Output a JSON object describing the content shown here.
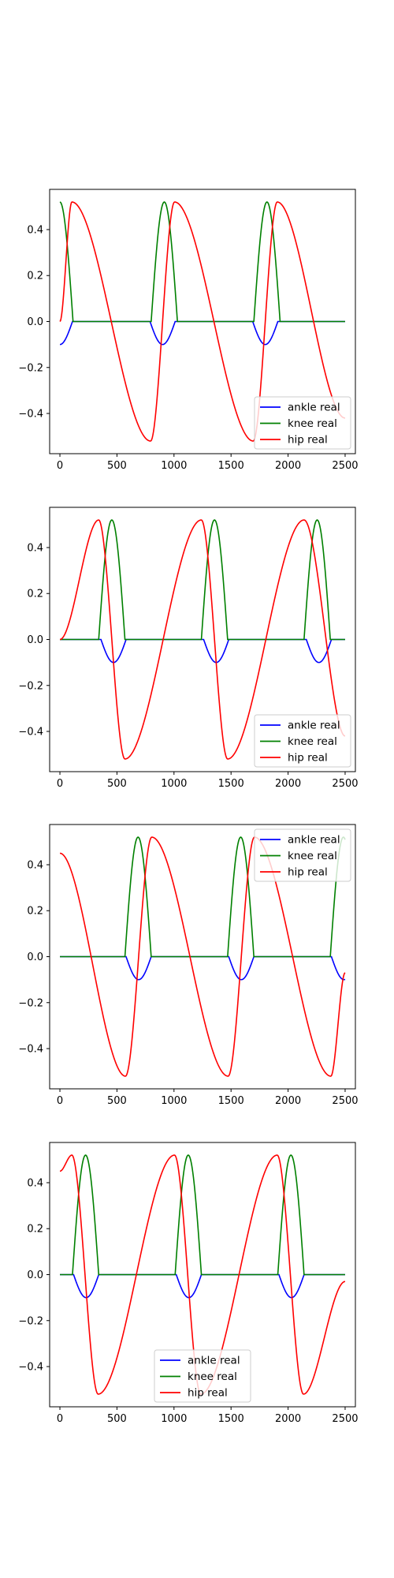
{
  "chart_data": [
    {
      "type": "line",
      "title": "",
      "xlabel": "",
      "ylabel": "",
      "xlim": [
        -90,
        2590
      ],
      "ylim": [
        -0.575,
        0.575
      ],
      "xticks": [
        0,
        500,
        1000,
        1500,
        2000,
        2500
      ],
      "yticks": [
        -0.4,
        -0.2,
        0.0,
        0.2,
        0.4
      ],
      "xtick_labels": [
        "0",
        "500",
        "1000",
        "1500",
        "2000",
        "2500"
      ],
      "ytick_labels": [
        "−0.4",
        "−0.2",
        "0.0",
        "0.2",
        "0.4"
      ],
      "legend": {
        "loc": "lower right",
        "entries": [
          "ankle real",
          "knee real",
          "hip real"
        ]
      },
      "series": [
        {
          "name": "ankle real",
          "color": "#0000ff",
          "kind": "dip",
          "period": 900,
          "centers": [
            0,
            900,
            1800
          ],
          "half_width": 110,
          "amplitude": -0.1
        },
        {
          "name": "knee real",
          "color": "#008000",
          "kind": "bump",
          "period": 900,
          "centers": [
            0,
            915,
            1815
          ],
          "half_width": 115,
          "amplitude": 0.52
        },
        {
          "name": "hip real",
          "color": "#ff0000",
          "kind": "saw",
          "period": 900,
          "peaks": [
            105,
            1005,
            1905
          ],
          "troughs": [
            795,
            1695
          ],
          "amplitude": 0.52,
          "x_start": 0,
          "x_end": 2500,
          "y_start": 0.0,
          "y_end": -0.42
        }
      ]
    },
    {
      "type": "line",
      "title": "",
      "xlabel": "",
      "ylabel": "",
      "xlim": [
        -90,
        2590
      ],
      "ylim": [
        -0.575,
        0.575
      ],
      "xticks": [
        0,
        500,
        1000,
        1500,
        2000,
        2500
      ],
      "yticks": [
        -0.4,
        -0.2,
        0.0,
        0.2,
        0.4
      ],
      "xtick_labels": [
        "0",
        "500",
        "1000",
        "1500",
        "2000",
        "2500"
      ],
      "ytick_labels": [
        "−0.4",
        "−0.2",
        "0.0",
        "0.2",
        "0.4"
      ],
      "legend": {
        "loc": "lower right",
        "entries": [
          "ankle real",
          "knee real",
          "hip real"
        ]
      },
      "series": [
        {
          "name": "ankle real",
          "color": "#0000ff",
          "kind": "dip",
          "period": 900,
          "centers": [
            470,
            1370,
            2270
          ],
          "half_width": 110,
          "amplitude": -0.1
        },
        {
          "name": "knee real",
          "color": "#008000",
          "kind": "bump",
          "period": 900,
          "centers": [
            455,
            1355,
            2255
          ],
          "half_width": 115,
          "amplitude": 0.52
        },
        {
          "name": "hip real",
          "color": "#ff0000",
          "kind": "saw",
          "period": 900,
          "peaks": [
            340,
            1240,
            2140
          ],
          "troughs": [
            570,
            1470
          ],
          "amplitude": 0.52,
          "x_start": 0,
          "x_end": 2500,
          "y_start": 0.0,
          "y_end": -0.42
        }
      ]
    },
    {
      "type": "line",
      "title": "",
      "xlabel": "",
      "ylabel": "",
      "xlim": [
        -90,
        2590
      ],
      "ylim": [
        -0.575,
        0.575
      ],
      "xticks": [
        0,
        500,
        1000,
        1500,
        2000,
        2500
      ],
      "yticks": [
        -0.4,
        -0.2,
        0.0,
        0.2,
        0.4
      ],
      "xtick_labels": [
        "0",
        "500",
        "1000",
        "1500",
        "2000",
        "2500"
      ],
      "ytick_labels": [
        "−0.4",
        "−0.2",
        "0.0",
        "0.2",
        "0.4"
      ],
      "legend": {
        "loc": "upper right",
        "entries": [
          "ankle real",
          "knee real",
          "hip real"
        ]
      },
      "series": [
        {
          "name": "ankle real",
          "color": "#0000ff",
          "kind": "dip",
          "period": 900,
          "centers": [
            690,
            1590,
            2490
          ],
          "half_width": 110,
          "amplitude": -0.1
        },
        {
          "name": "knee real",
          "color": "#008000",
          "kind": "bump",
          "period": 900,
          "centers": [
            685,
            1585,
            2485
          ],
          "half_width": 115,
          "amplitude": 0.52
        },
        {
          "name": "hip real",
          "color": "#ff0000",
          "kind": "saw",
          "period": 900,
          "peaks": [
            805,
            1705
          ],
          "troughs": [
            575,
            1475,
            2375
          ],
          "amplitude": 0.52,
          "x_start": 0,
          "x_end": 2500,
          "y_start": 0.45,
          "y_end": -0.07
        }
      ]
    },
    {
      "type": "line",
      "title": "",
      "xlabel": "",
      "ylabel": "",
      "xlim": [
        -90,
        2590
      ],
      "ylim": [
        -0.575,
        0.575
      ],
      "xticks": [
        0,
        500,
        1000,
        1500,
        2000,
        2500
      ],
      "yticks": [
        -0.4,
        -0.2,
        0.0,
        0.2,
        0.4
      ],
      "xtick_labels": [
        "0",
        "500",
        "1000",
        "1500",
        "2000",
        "2500"
      ],
      "ytick_labels": [
        "−0.4",
        "−0.2",
        "0.0",
        "0.2",
        "0.4"
      ],
      "legend": {
        "loc": "lower center",
        "entries": [
          "ankle real",
          "knee real",
          "hip real"
        ]
      },
      "series": [
        {
          "name": "ankle real",
          "color": "#0000ff",
          "kind": "dip",
          "period": 900,
          "centers": [
            230,
            1130,
            2030
          ],
          "half_width": 110,
          "amplitude": -0.1
        },
        {
          "name": "knee real",
          "color": "#008000",
          "kind": "bump",
          "period": 900,
          "centers": [
            225,
            1125,
            2025
          ],
          "half_width": 115,
          "amplitude": 0.52
        },
        {
          "name": "hip real",
          "color": "#ff0000",
          "kind": "saw",
          "period": 900,
          "peaks": [
            105,
            1005,
            1905
          ],
          "troughs": [
            335,
            1235,
            2135
          ],
          "amplitude": 0.52,
          "x_start": 0,
          "x_end": 2500,
          "y_start": 0.45,
          "y_end": -0.03
        }
      ]
    }
  ]
}
